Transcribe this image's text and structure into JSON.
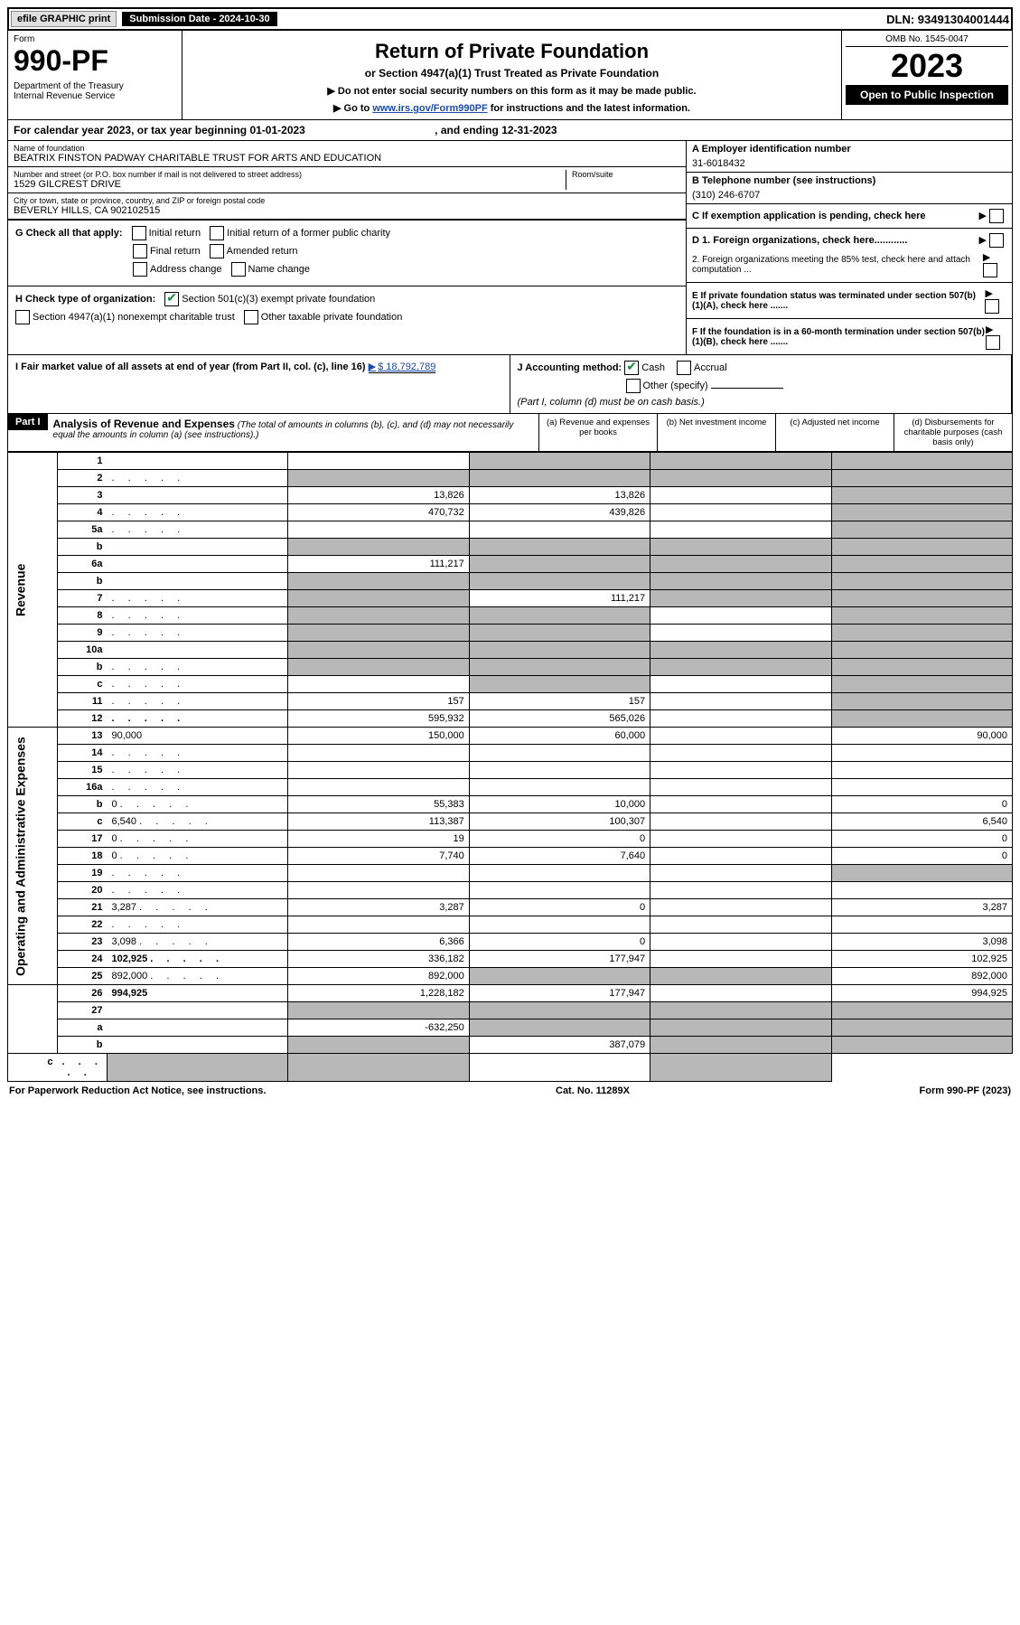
{
  "topbar": {
    "efile": "efile GRAPHIC print",
    "submission": "Submission Date - 2024-10-30",
    "dln": "DLN: 93491304001444"
  },
  "header": {
    "form_label": "Form",
    "form_number": "990-PF",
    "dept": "Department of the Treasury\nInternal Revenue Service",
    "title": "Return of Private Foundation",
    "subtitle": "or Section 4947(a)(1) Trust Treated as Private Foundation",
    "note1": "▶ Do not enter social security numbers on this form as it may be made public.",
    "note2_pre": "▶ Go to ",
    "note2_link": "www.irs.gov/Form990PF",
    "note2_post": " for instructions and the latest information.",
    "omb": "OMB No. 1545-0047",
    "year": "2023",
    "open_public": "Open to Public Inspection"
  },
  "cal_year": {
    "pre": "For calendar year 2023, or tax year beginning ",
    "begin": "01-01-2023",
    "mid": " , and ending ",
    "end": "12-31-2023"
  },
  "info": {
    "name_label": "Name of foundation",
    "name": "BEATRIX FINSTON PADWAY CHARITABLE TRUST FOR ARTS AND EDUCATION",
    "addr_label": "Number and street (or P.O. box number if mail is not delivered to street address)",
    "addr": "1529 GILCREST DRIVE",
    "room_label": "Room/suite",
    "city_label": "City or town, state or province, country, and ZIP or foreign postal code",
    "city": "BEVERLY HILLS, CA  902102515",
    "ein_label": "A Employer identification number",
    "ein": "31-6018432",
    "phone_label": "B Telephone number (see instructions)",
    "phone": "(310) 246-6707",
    "c_label": "C If exemption application is pending, check here"
  },
  "g": {
    "label": "G Check all that apply:",
    "opts": [
      "Initial return",
      "Initial return of a former public charity",
      "Final return",
      "Amended return",
      "Address change",
      "Name change"
    ]
  },
  "h": {
    "label": "H Check type of organization:",
    "opt1": "Section 501(c)(3) exempt private foundation",
    "opt2": "Section 4947(a)(1) nonexempt charitable trust",
    "opt3": "Other taxable private foundation"
  },
  "d": {
    "d1": "D 1. Foreign organizations, check here............",
    "d2": "2. Foreign organizations meeting the 85% test, check here and attach computation ...",
    "e": "E  If private foundation status was terminated under section 507(b)(1)(A), check here .......",
    "f": "F  If the foundation is in a 60-month termination under section 507(b)(1)(B), check here ......."
  },
  "i": {
    "label": "I Fair market value of all assets at end of year (from Part II, col. (c), line 16)",
    "value": "$  18,792,789"
  },
  "j": {
    "label": "J Accounting method:",
    "cash": "Cash",
    "accrual": "Accrual",
    "other": "Other (specify)",
    "note": "(Part I, column (d) must be on cash basis.)"
  },
  "part1": {
    "label": "Part I",
    "title": "Analysis of Revenue and Expenses",
    "title_note": " (The total of amounts in columns (b), (c), and (d) may not necessarily equal the amounts in column (a) (see instructions).)",
    "col_a": "(a) Revenue and expenses per books",
    "col_b": "(b) Net investment income",
    "col_c": "(c) Adjusted net income",
    "col_d": "(d) Disbursements for charitable purposes (cash basis only)"
  },
  "side_labels": {
    "revenue": "Revenue",
    "expenses": "Operating and Administrative Expenses"
  },
  "rows": [
    {
      "n": "1",
      "d": "",
      "a": "",
      "b": "",
      "c": "",
      "a_sh": false,
      "b_sh": true,
      "c_sh": true,
      "d_sh": true
    },
    {
      "n": "2",
      "d": "",
      "a": "",
      "b": "",
      "c": "",
      "a_sh": true,
      "b_sh": true,
      "c_sh": true,
      "d_sh": true,
      "dots": true
    },
    {
      "n": "3",
      "d": "",
      "a": "13,826",
      "b": "13,826",
      "c": "",
      "d_sh": true
    },
    {
      "n": "4",
      "d": "",
      "a": "470,732",
      "b": "439,826",
      "c": "",
      "d_sh": true,
      "dots": true
    },
    {
      "n": "5a",
      "d": "",
      "a": "",
      "b": "",
      "c": "",
      "d_sh": true,
      "dots": true
    },
    {
      "n": "b",
      "d": "",
      "a": "",
      "b": "",
      "c": "",
      "a_sh": true,
      "b_sh": true,
      "c_sh": true,
      "d_sh": true
    },
    {
      "n": "6a",
      "d": "",
      "a": "111,217",
      "b": "",
      "c": "",
      "b_sh": true,
      "c_sh": true,
      "d_sh": true
    },
    {
      "n": "b",
      "d": "",
      "a": "",
      "b": "",
      "c": "",
      "a_sh": true,
      "b_sh": true,
      "c_sh": true,
      "d_sh": true
    },
    {
      "n": "7",
      "d": "",
      "a": "",
      "b": "111,217",
      "c": "",
      "a_sh": true,
      "c_sh": true,
      "d_sh": true,
      "dots": true
    },
    {
      "n": "8",
      "d": "",
      "a": "",
      "b": "",
      "c": "",
      "a_sh": true,
      "b_sh": true,
      "d_sh": true,
      "dots": true
    },
    {
      "n": "9",
      "d": "",
      "a": "",
      "b": "",
      "c": "",
      "a_sh": true,
      "b_sh": true,
      "d_sh": true,
      "dots": true
    },
    {
      "n": "10a",
      "d": "",
      "a": "",
      "b": "",
      "c": "",
      "a_sh": true,
      "b_sh": true,
      "c_sh": true,
      "d_sh": true
    },
    {
      "n": "b",
      "d": "",
      "a": "",
      "b": "",
      "c": "",
      "a_sh": true,
      "b_sh": true,
      "c_sh": true,
      "d_sh": true,
      "dots": true
    },
    {
      "n": "c",
      "d": "",
      "a": "",
      "b": "",
      "c": "",
      "b_sh": true,
      "d_sh": true,
      "dots": true
    },
    {
      "n": "11",
      "d": "",
      "a": "157",
      "b": "157",
      "c": "",
      "d_sh": true,
      "dots": true
    },
    {
      "n": "12",
      "d": "",
      "a": "595,932",
      "b": "565,026",
      "c": "",
      "d_sh": true,
      "bold": true,
      "dots": true
    },
    {
      "n": "13",
      "d": "90,000",
      "a": "150,000",
      "b": "60,000",
      "c": ""
    },
    {
      "n": "14",
      "d": "",
      "a": "",
      "b": "",
      "c": "",
      "dots": true
    },
    {
      "n": "15",
      "d": "",
      "a": "",
      "b": "",
      "c": "",
      "dots": true
    },
    {
      "n": "16a",
      "d": "",
      "a": "",
      "b": "",
      "c": "",
      "dots": true
    },
    {
      "n": "b",
      "d": "0",
      "a": "55,383",
      "b": "10,000",
      "c": "",
      "dots": true
    },
    {
      "n": "c",
      "d": "6,540",
      "a": "113,387",
      "b": "100,307",
      "c": "",
      "dots": true
    },
    {
      "n": "17",
      "d": "0",
      "a": "19",
      "b": "0",
      "c": "",
      "dots": true
    },
    {
      "n": "18",
      "d": "0",
      "a": "7,740",
      "b": "7,640",
      "c": "",
      "dots": true
    },
    {
      "n": "19",
      "d": "",
      "a": "",
      "b": "",
      "c": "",
      "d_sh": true,
      "dots": true
    },
    {
      "n": "20",
      "d": "",
      "a": "",
      "b": "",
      "c": "",
      "dots": true
    },
    {
      "n": "21",
      "d": "3,287",
      "a": "3,287",
      "b": "0",
      "c": "",
      "dots": true
    },
    {
      "n": "22",
      "d": "",
      "a": "",
      "b": "",
      "c": "",
      "dots": true
    },
    {
      "n": "23",
      "d": "3,098",
      "a": "6,366",
      "b": "0",
      "c": "",
      "dots": true
    },
    {
      "n": "24",
      "d": "102,925",
      "a": "336,182",
      "b": "177,947",
      "c": "",
      "bold": true,
      "dots": true
    },
    {
      "n": "25",
      "d": "892,000",
      "a": "892,000",
      "b": "",
      "c": "",
      "b_sh": true,
      "c_sh": true,
      "dots": true
    },
    {
      "n": "26",
      "d": "994,925",
      "a": "1,228,182",
      "b": "177,947",
      "c": "",
      "bold": true
    },
    {
      "n": "27",
      "d": "",
      "a": "",
      "b": "",
      "c": "",
      "a_sh": true,
      "b_sh": true,
      "c_sh": true,
      "d_sh": true
    },
    {
      "n": "a",
      "d": "",
      "a": "-632,250",
      "b": "",
      "c": "",
      "b_sh": true,
      "c_sh": true,
      "d_sh": true,
      "bold": true
    },
    {
      "n": "b",
      "d": "",
      "a": "",
      "b": "387,079",
      "c": "",
      "a_sh": true,
      "c_sh": true,
      "d_sh": true,
      "bold": true
    },
    {
      "n": "c",
      "d": "",
      "a": "",
      "b": "",
      "c": "",
      "a_sh": true,
      "b_sh": true,
      "d_sh": true,
      "bold": true,
      "dots": true
    }
  ],
  "footer": {
    "left": "For Paperwork Reduction Act Notice, see instructions.",
    "mid": "Cat. No. 11289X",
    "right": "Form 990-PF (2023)"
  }
}
